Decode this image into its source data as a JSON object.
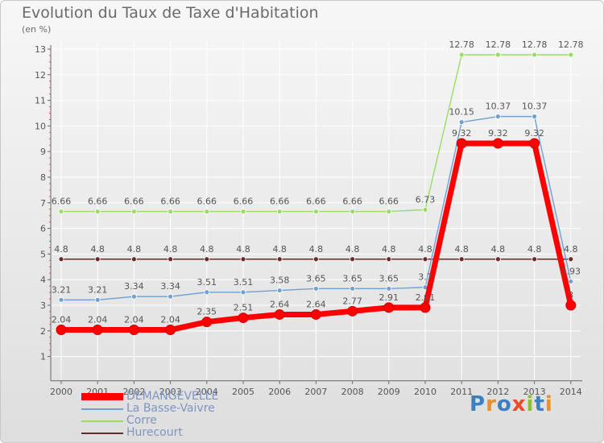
{
  "title": "Evolution du Taux de Taxe d'Habitation",
  "unit": "(en %)",
  "logo": "Proxiti",
  "colors": {
    "DEMANGEVELLE": "#ff0000",
    "La Basse-Vaivre": "#6ea0d4",
    "Corre": "#99dd66",
    "Hurecourt": "#6b2a2a",
    "axis": "#666666",
    "grid": "#ffffff"
  },
  "chart_data": {
    "type": "line",
    "categories": [
      "2000",
      "2001",
      "2002",
      "2003",
      "2004",
      "2005",
      "2006",
      "2007",
      "2008",
      "2009",
      "2010",
      "2011",
      "2012",
      "2013",
      "2014"
    ],
    "ylim": [
      1,
      13
    ],
    "yticks": [
      1,
      2,
      3,
      4,
      5,
      6,
      7,
      8,
      9,
      10,
      11,
      12,
      13
    ],
    "grid": true,
    "legend_position": "bottom-left",
    "series": [
      {
        "name": "DEMANGEVELLE",
        "values": [
          2.04,
          2.04,
          2.04,
          2.04,
          2.35,
          2.51,
          2.64,
          2.64,
          2.77,
          2.91,
          2.91,
          9.32,
          9.32,
          9.32,
          3
        ],
        "labels": [
          "2.04",
          "2.04",
          "2.04",
          "2.04",
          "2.35",
          "2.51",
          "2.64",
          "2.64",
          "2.77",
          "2.91",
          "2.91",
          "9.32",
          "9.32",
          "9.32",
          "3"
        ]
      },
      {
        "name": "La Basse-Vaivre",
        "values": [
          3.21,
          3.21,
          3.34,
          3.34,
          3.51,
          3.51,
          3.58,
          3.65,
          3.65,
          3.65,
          3.7,
          10.15,
          10.37,
          10.37,
          3.93
        ],
        "labels": [
          "3.21",
          "3.21",
          "3.34",
          "3.34",
          "3.51",
          "3.51",
          "3.58",
          "3.65",
          "3.65",
          "3.65",
          "3.7",
          "10.15",
          "10.37",
          "10.37",
          "3.93"
        ]
      },
      {
        "name": "Corre",
        "values": [
          6.66,
          6.66,
          6.66,
          6.66,
          6.66,
          6.66,
          6.66,
          6.66,
          6.66,
          6.66,
          6.73,
          12.78,
          12.78,
          12.78,
          12.78
        ],
        "labels": [
          "6.66",
          "6.66",
          "6.66",
          "6.66",
          "6.66",
          "6.66",
          "6.66",
          "6.66",
          "6.66",
          "6.66",
          "6.73",
          "12.78",
          "12.78",
          "12.78",
          "12.78"
        ]
      },
      {
        "name": "Hurecourt",
        "values": [
          4.8,
          4.8,
          4.8,
          4.8,
          4.8,
          4.8,
          4.8,
          4.8,
          4.8,
          4.8,
          4.8,
          4.8,
          4.8,
          4.8,
          4.8
        ],
        "labels": [
          "4.8",
          "4.8",
          "4.8",
          "4.8",
          "4.8",
          "4.8",
          "4.8",
          "4.8",
          "4.8",
          "4.8",
          "4.8",
          "4.8",
          "4.8",
          "4.8",
          "4.8"
        ]
      }
    ]
  }
}
